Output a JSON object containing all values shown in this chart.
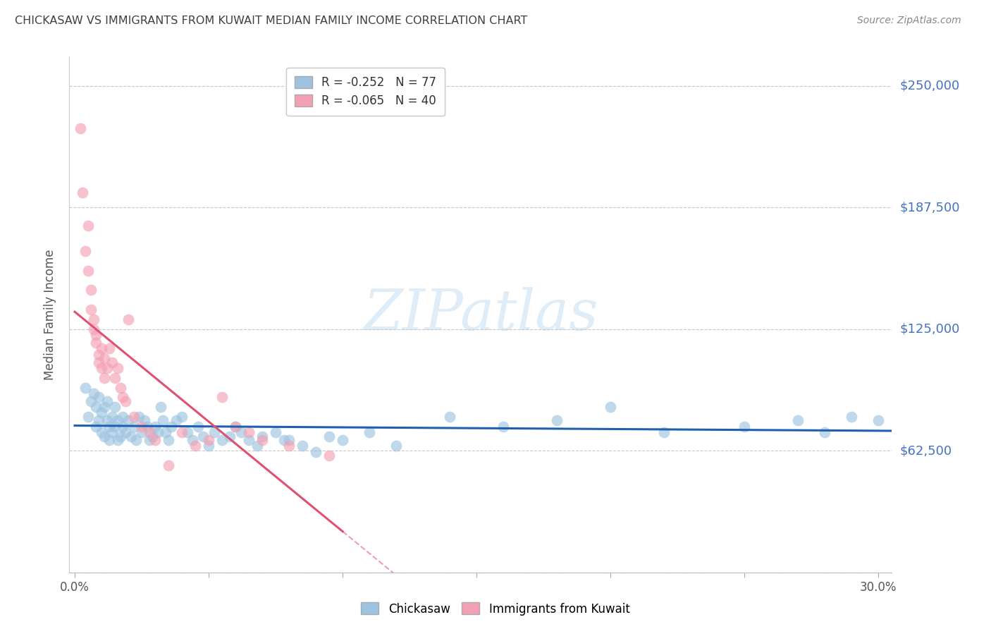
{
  "title": "CHICKASAW VS IMMIGRANTS FROM KUWAIT MEDIAN FAMILY INCOME CORRELATION CHART",
  "source": "Source: ZipAtlas.com",
  "ylabel": "Median Family Income",
  "y_ticks": [
    0,
    62500,
    125000,
    187500,
    250000
  ],
  "y_tick_labels": [
    "",
    "$62,500",
    "$125,000",
    "$187,500",
    "$250,000"
  ],
  "ylim": [
    0,
    265000
  ],
  "xlim": [
    -0.002,
    0.305
  ],
  "watermark_text": "ZIPatlas",
  "blue_R": -0.252,
  "blue_N": 77,
  "pink_R": -0.065,
  "pink_N": 40,
  "blue_color": "#9dc3e0",
  "pink_color": "#f4a0b4",
  "blue_line_color": "#2060b0",
  "pink_line_color": "#e05070",
  "grid_color": "#c8c8c8",
  "title_color": "#404040",
  "right_label_color": "#4472c4",
  "background_color": "#ffffff",
  "blue_scatter_x": [
    0.004,
    0.005,
    0.006,
    0.007,
    0.008,
    0.008,
    0.009,
    0.009,
    0.01,
    0.01,
    0.011,
    0.011,
    0.012,
    0.012,
    0.013,
    0.013,
    0.014,
    0.014,
    0.015,
    0.015,
    0.016,
    0.016,
    0.017,
    0.018,
    0.018,
    0.019,
    0.02,
    0.021,
    0.022,
    0.023,
    0.024,
    0.025,
    0.026,
    0.027,
    0.028,
    0.029,
    0.03,
    0.031,
    0.032,
    0.033,
    0.034,
    0.035,
    0.036,
    0.038,
    0.04,
    0.042,
    0.044,
    0.046,
    0.048,
    0.05,
    0.052,
    0.055,
    0.058,
    0.06,
    0.062,
    0.065,
    0.068,
    0.07,
    0.075,
    0.078,
    0.08,
    0.085,
    0.09,
    0.095,
    0.1,
    0.11,
    0.12,
    0.14,
    0.16,
    0.18,
    0.2,
    0.22,
    0.25,
    0.27,
    0.28,
    0.29,
    0.3
  ],
  "blue_scatter_y": [
    95000,
    80000,
    88000,
    92000,
    75000,
    85000,
    78000,
    90000,
    72000,
    82000,
    85000,
    70000,
    78000,
    88000,
    75000,
    68000,
    80000,
    72000,
    75000,
    85000,
    78000,
    68000,
    70000,
    80000,
    75000,
    72000,
    78000,
    70000,
    75000,
    68000,
    80000,
    72000,
    78000,
    75000,
    68000,
    70000,
    75000,
    72000,
    85000,
    78000,
    72000,
    68000,
    75000,
    78000,
    80000,
    72000,
    68000,
    75000,
    70000,
    65000,
    72000,
    68000,
    70000,
    75000,
    72000,
    68000,
    65000,
    70000,
    72000,
    68000,
    68000,
    65000,
    62000,
    70000,
    68000,
    72000,
    65000,
    80000,
    75000,
    78000,
    85000,
    72000,
    75000,
    78000,
    72000,
    80000,
    78000
  ],
  "pink_scatter_x": [
    0.002,
    0.003,
    0.004,
    0.005,
    0.005,
    0.006,
    0.006,
    0.007,
    0.007,
    0.008,
    0.008,
    0.009,
    0.009,
    0.01,
    0.01,
    0.011,
    0.011,
    0.012,
    0.013,
    0.014,
    0.015,
    0.016,
    0.017,
    0.018,
    0.019,
    0.02,
    0.022,
    0.025,
    0.028,
    0.03,
    0.035,
    0.04,
    0.045,
    0.05,
    0.055,
    0.06,
    0.065,
    0.07,
    0.08,
    0.095
  ],
  "pink_scatter_y": [
    228000,
    195000,
    165000,
    178000,
    155000,
    135000,
    145000,
    130000,
    125000,
    118000,
    122000,
    112000,
    108000,
    115000,
    105000,
    110000,
    100000,
    105000,
    115000,
    108000,
    100000,
    105000,
    95000,
    90000,
    88000,
    130000,
    80000,
    75000,
    72000,
    68000,
    55000,
    72000,
    65000,
    68000,
    90000,
    75000,
    72000,
    68000,
    65000,
    60000
  ]
}
